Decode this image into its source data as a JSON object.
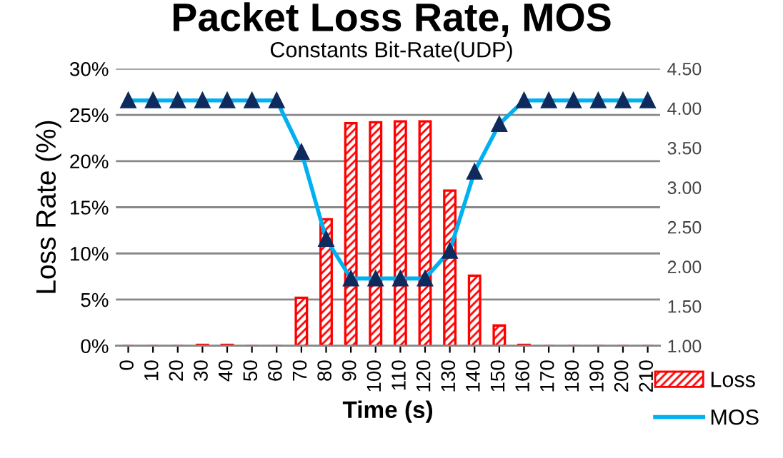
{
  "chart_data": {
    "type": "bar",
    "title": "Packet Loss Rate, MOS",
    "subtitle": "Constants Bit-Rate(UDP)",
    "xlabel": "Time (s)",
    "ylabel": "Loss Rate (%)",
    "categories": [
      "0",
      "10",
      "20",
      "30",
      "40",
      "50",
      "60",
      "70",
      "80",
      "90",
      "100",
      "110",
      "120",
      "130",
      "140",
      "150",
      "160",
      "170",
      "180",
      "190",
      "200",
      "210"
    ],
    "series": [
      {
        "name": "Loss",
        "color": "#ff0000",
        "values": [
          0,
          0,
          0,
          0.1,
          0.1,
          0,
          0,
          5.2,
          13.7,
          24.1,
          24.2,
          24.3,
          24.3,
          16.8,
          7.6,
          2.2,
          0.1,
          0,
          0,
          0,
          0,
          0
        ]
      },
      {
        "name": "MOS",
        "type": "line",
        "axis": "y2",
        "color": "#00b0f0",
        "marker": "triangle",
        "values": [
          4.1,
          4.1,
          4.1,
          4.1,
          4.1,
          4.1,
          4.1,
          3.45,
          2.35,
          1.85,
          1.85,
          1.85,
          1.85,
          2.2,
          3.2,
          3.8,
          4.1,
          4.1,
          4.1,
          4.1,
          4.1,
          4.1
        ]
      }
    ],
    "ylim": [
      0,
      30
    ],
    "yticks": [
      {
        "value": 0,
        "label": "0%"
      },
      {
        "value": 5,
        "label": "5%"
      },
      {
        "value": 10,
        "label": "10%"
      },
      {
        "value": 15,
        "label": "15%"
      },
      {
        "value": 20,
        "label": "20%"
      },
      {
        "value": 25,
        "label": "25%"
      },
      {
        "value": 30,
        "label": "30%"
      }
    ],
    "y2lim": [
      1.0,
      4.5
    ],
    "y2ticks": [
      {
        "value": 1,
        "label": "1.00"
      },
      {
        "value": 1.5,
        "label": "1.50"
      },
      {
        "value": 2,
        "label": "2.00"
      },
      {
        "value": 2.5,
        "label": "2.50"
      },
      {
        "value": 3,
        "label": "3.00"
      },
      {
        "value": 3.5,
        "label": "3.50"
      },
      {
        "value": 4,
        "label": "4.00"
      },
      {
        "value": 4.5,
        "label": "4.50"
      }
    ],
    "grid": "y",
    "legend": "right"
  }
}
